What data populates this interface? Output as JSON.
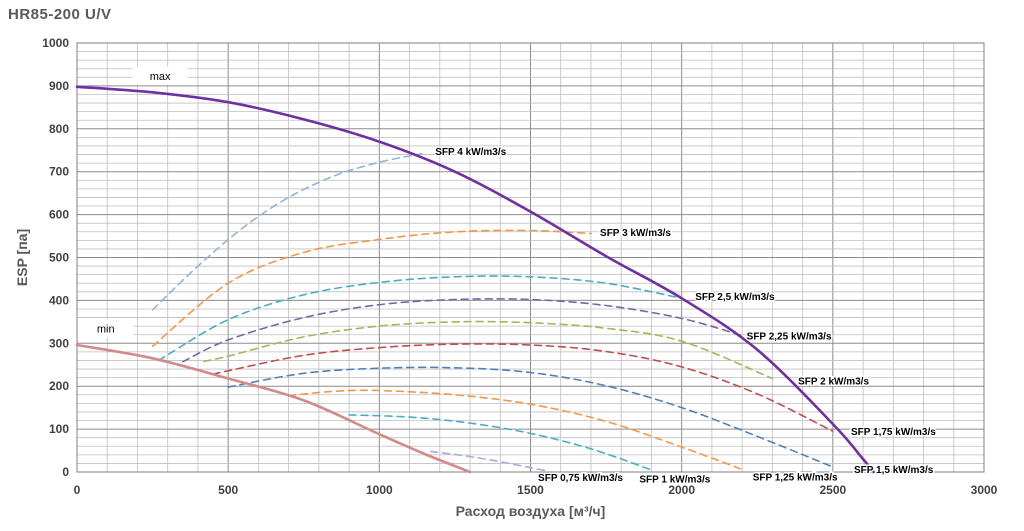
{
  "page_title": "HR85-200 U/V",
  "chart_data": {
    "type": "line",
    "title": "HR85-200 U/V",
    "xlabel": "Расход воздуха [м³/ч]",
    "ylabel": "ESP [па]",
    "xlim": [
      0,
      3000
    ],
    "ylim": [
      0,
      1000
    ],
    "x_ticks": [
      0,
      500,
      1000,
      1500,
      2000,
      2500,
      3000
    ],
    "y_ticks": [
      0,
      100,
      200,
      300,
      400,
      500,
      600,
      700,
      800,
      900,
      1000
    ],
    "grid": true,
    "series": [
      {
        "name": "max",
        "color": "#7030A0",
        "style": "solid",
        "x": [
          0,
          250,
          500,
          750,
          1000,
          1250,
          1500,
          1750,
          2000,
          2250,
          2500,
          2600,
          2635
        ],
        "y": [
          898,
          885,
          862,
          822,
          770,
          700,
          607,
          503,
          405,
          285,
          112,
          30,
          0
        ]
      },
      {
        "name": "min",
        "color": "#D48A8A",
        "style": "solid",
        "x": [
          0,
          250,
          500,
          750,
          1000,
          1150,
          1300
        ],
        "y": [
          296,
          265,
          218,
          167,
          88,
          42,
          0
        ]
      },
      {
        "name": "SFP 4 kW/m3/s",
        "color": "#95B3D7",
        "style": "dashed",
        "x": [
          250,
          400,
          550,
          700,
          850,
          1000,
          1140
        ],
        "y": [
          378,
          480,
          570,
          640,
          690,
          722,
          742
        ]
      },
      {
        "name": "SFP 3 kW/m3/s",
        "color": "#F79646",
        "style": "dashed",
        "x": [
          250,
          500,
          750,
          1000,
          1250,
          1500,
          1700
        ],
        "y": [
          293,
          440,
          512,
          542,
          560,
          563,
          556
        ]
      },
      {
        "name": "SFP 2,5 kW/m3/s",
        "color": "#4BACC6",
        "style": "dashed",
        "x": [
          270,
          500,
          750,
          1000,
          1250,
          1500,
          1750,
          2000
        ],
        "y": [
          260,
          355,
          413,
          442,
          455,
          455,
          440,
          405
        ]
      },
      {
        "name": "SFP 2,25 kW/m3/s",
        "color": "#8064A2",
        "style": "dashed",
        "x": [
          350,
          500,
          750,
          1000,
          1250,
          1500,
          1750,
          2000,
          2200
        ],
        "y": [
          257,
          308,
          360,
          390,
          402,
          402,
          388,
          358,
          318
        ]
      },
      {
        "name": "SFP 2 kW/m3/s",
        "color": "#9BBB59",
        "style": "dashed",
        "x": [
          420,
          500,
          750,
          1000,
          1250,
          1500,
          1750,
          2000,
          2300
        ],
        "y": [
          258,
          270,
          315,
          340,
          350,
          348,
          335,
          305,
          218
        ]
      },
      {
        "name": "SFP 1,75 kW/m3/s",
        "color": "#C0504D",
        "style": "dashed",
        "x": [
          450,
          500,
          750,
          1000,
          1250,
          1500,
          1750,
          2000,
          2250,
          2500
        ],
        "y": [
          228,
          236,
          272,
          290,
          298,
          296,
          281,
          245,
          182,
          95
        ]
      },
      {
        "name": "SFP 1,5 kW/m3/s",
        "color": "#4F81BD",
        "style": "dashed",
        "x": [
          500,
          750,
          1000,
          1250,
          1500,
          1750,
          2000,
          2250,
          2500
        ],
        "y": [
          198,
          230,
          242,
          243,
          232,
          201,
          150,
          83,
          12
        ]
      },
      {
        "name": "SFP 1,25 kW/m3/s",
        "color": "#F79646",
        "style": "dashed",
        "x": [
          700,
          850,
          1000,
          1250,
          1500,
          1750,
          2000,
          2200
        ],
        "y": [
          178,
          188,
          190,
          180,
          158,
          118,
          58,
          6
        ]
      },
      {
        "name": "SFP 1 kW/m3/s",
        "color": "#4BACC6",
        "style": "dashed",
        "x": [
          900,
          1100,
          1300,
          1500,
          1700,
          1900
        ],
        "y": [
          133,
          128,
          114,
          90,
          54,
          5
        ]
      },
      {
        "name": "SFP 0,75 kW/m3/s",
        "color": "#B4A7D6",
        "style": "dashed",
        "x": [
          1170,
          1300,
          1400,
          1500,
          1560
        ],
        "y": [
          48,
          36,
          24,
          10,
          2
        ]
      }
    ],
    "annotations": [
      {
        "text": "max",
        "x": 275,
        "y": 923
      },
      {
        "text": "min",
        "x": 95,
        "y": 335
      },
      {
        "text": "SFP 4 kW/m3/s",
        "x": 1185,
        "y": 748
      },
      {
        "text": "SFP 3 kW/m3/s",
        "x": 1730,
        "y": 560
      },
      {
        "text": "SFP 2,5 kW/m3/s",
        "x": 2045,
        "y": 410
      },
      {
        "text": "SFP 2,25 kW/m3/s",
        "x": 2215,
        "y": 318
      },
      {
        "text": "SFP 2 kW/m3/s",
        "x": 2385,
        "y": 213
      },
      {
        "text": "SFP 1,75 kW/m3/s",
        "x": 2560,
        "y": 95
      },
      {
        "text": "SFP 1,5 kW/m3/s",
        "x": 2570,
        "y": 7
      },
      {
        "text": "SFP 1,25 kW/m3/s",
        "x": 2235,
        "y": -10
      },
      {
        "text": "SFP 1 kW/m3/s",
        "x": 1860,
        "y": -15
      },
      {
        "text": "SFP 0,75 kW/m3/s",
        "x": 1525,
        "y": -12
      }
    ]
  }
}
